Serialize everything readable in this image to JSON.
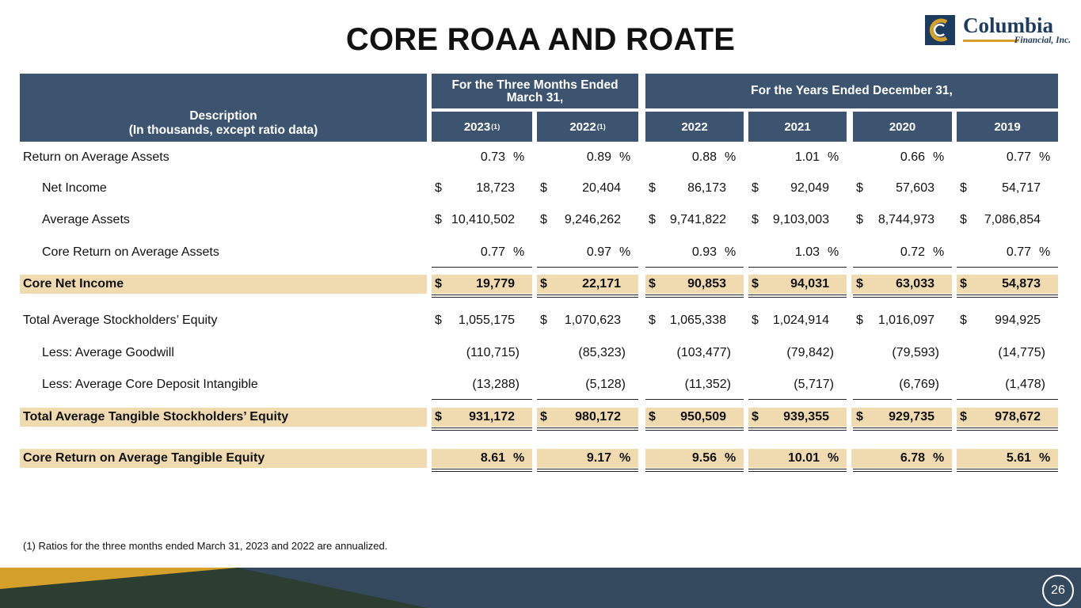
{
  "title": "CORE ROAA AND ROATE",
  "logo": {
    "brand": "Columbia",
    "sub": "Financial, Inc."
  },
  "header": {
    "description_line1": "Description",
    "description_line2": "(In thousands, except ratio data)",
    "group_three_months_line1": "For the Three Months Ended",
    "group_three_months_line2": "March 31,",
    "group_years": "For the Years Ended December 31,",
    "years": [
      {
        "label": "2023",
        "note": "(1)"
      },
      {
        "label": "2022",
        "note": "(1)"
      },
      {
        "label": "2022",
        "note": ""
      },
      {
        "label": "2021",
        "note": ""
      },
      {
        "label": "2020",
        "note": ""
      },
      {
        "label": "2019",
        "note": ""
      }
    ]
  },
  "symbols": {
    "dollar": "$",
    "percent": "%"
  },
  "rows": [
    {
      "label": "Return on Average Assets",
      "values": [
        "0.73",
        "0.89",
        "0.88",
        "1.01",
        "0.66",
        "0.77"
      ]
    },
    {
      "label": "Net Income",
      "values": [
        "18,723",
        "20,404",
        "86,173",
        "92,049",
        "57,603",
        "54,717"
      ]
    },
    {
      "label": "Average Assets",
      "values": [
        "10,410,502",
        "9,246,262",
        "9,741,822",
        "9,103,003",
        "8,744,973",
        "7,086,854"
      ]
    },
    {
      "label": "Core Return on Average Assets",
      "values": [
        "0.77",
        "0.97",
        "0.93",
        "1.03",
        "0.72",
        "0.77"
      ]
    },
    {
      "label": "Core Net Income",
      "values": [
        "19,779",
        "22,171",
        "90,853",
        "94,031",
        "63,033",
        "54,873"
      ]
    },
    {
      "label": "Total Average Stockholders’ Equity",
      "values": [
        "1,055,175",
        "1,070,623",
        "1,065,338",
        "1,024,914",
        "1,016,097",
        "994,925"
      ]
    },
    {
      "label": "Less: Average Goodwill",
      "values": [
        "(110,715)",
        "(85,323)",
        "(103,477)",
        "(79,842)",
        "(79,593)",
        "(14,775)"
      ]
    },
    {
      "label": "Less: Average Core Deposit Intangible",
      "values": [
        "(13,288)",
        "(5,128)",
        "(11,352)",
        "(5,717)",
        "(6,769)",
        "(1,478)"
      ]
    },
    {
      "label": "Total Average Tangible Stockholders’ Equity",
      "values": [
        "931,172",
        "980,172",
        "950,509",
        "939,355",
        "929,735",
        "978,672"
      ]
    },
    {
      "label": "Core Return on Average Tangible Equity",
      "values": [
        "8.61",
        "9.17",
        "9.56",
        "10.01",
        "6.78",
        "5.61"
      ]
    }
  ],
  "footnote": "(1) Ratios for the three months ended March 31, 2023 and 2022 are annualized.",
  "page_number": "26",
  "colors": {
    "header": "#3d5470",
    "highlight": "#f0dbb0",
    "footer_dark": "#2c3d32",
    "footer_blue": "#34495e",
    "footer_gold": "#d4a02a"
  }
}
